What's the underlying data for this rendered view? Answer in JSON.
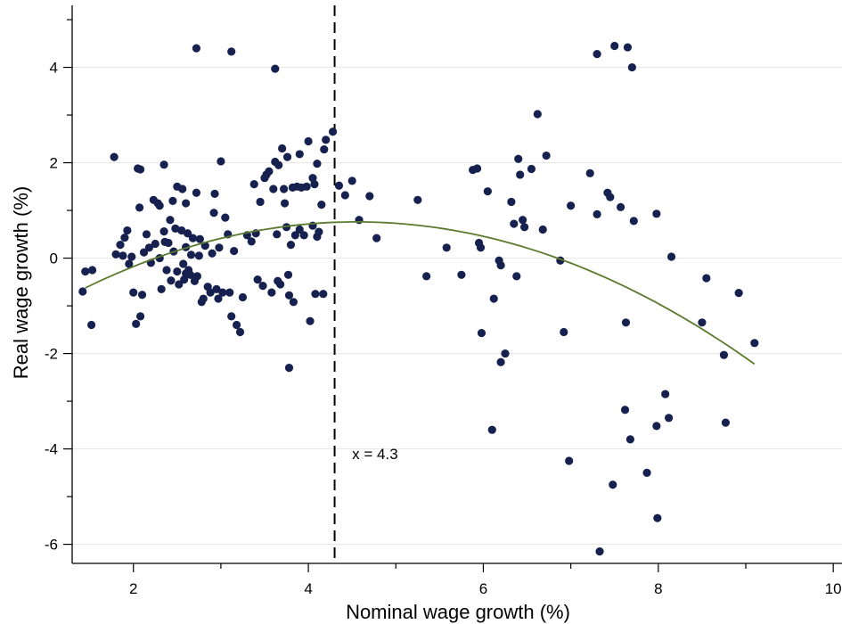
{
  "chart_data": {
    "type": "scatter",
    "xlabel": "Nominal wage growth (%)",
    "ylabel": "Real wage growth (%)",
    "xlim": [
      1.3,
      10.1
    ],
    "ylim": [
      -6.4,
      5.3
    ],
    "x_ticks": [
      2,
      4,
      6,
      8,
      10
    ],
    "y_ticks": [
      -6,
      -4,
      -2,
      0,
      2,
      4
    ],
    "grid": "horizontal",
    "marker_color": "#16214f",
    "fit_color": "#5a7a2e",
    "vline": {
      "x": 4.3,
      "style": "dashed",
      "color": "#000000"
    },
    "annotation": {
      "text": "x = 4.3",
      "x": 4.5,
      "y": -4.1
    },
    "fit_curve": {
      "type": "quadratic",
      "vertex_x": 4.55,
      "vertex_y": 0.76,
      "a": -0.144,
      "x_range": [
        1.45,
        9.1
      ]
    },
    "points": [
      [
        2.72,
        4.4
      ],
      [
        3.12,
        4.33
      ],
      [
        3.62,
        3.97
      ],
      [
        1.45,
        -0.28
      ],
      [
        1.42,
        -0.7
      ],
      [
        1.53,
        -0.25
      ],
      [
        1.52,
        -1.4
      ],
      [
        1.78,
        2.12
      ],
      [
        1.8,
        0.08
      ],
      [
        1.85,
        0.28
      ],
      [
        1.88,
        0.05
      ],
      [
        1.9,
        0.43
      ],
      [
        1.93,
        0.58
      ],
      [
        1.95,
        -0.12
      ],
      [
        1.98,
        0.03
      ],
      [
        2.0,
        -0.72
      ],
      [
        2.03,
        -1.38
      ],
      [
        2.05,
        1.88
      ],
      [
        2.08,
        1.86
      ],
      [
        2.07,
        1.06
      ],
      [
        2.08,
        -1.22
      ],
      [
        2.1,
        -0.77
      ],
      [
        2.12,
        0.12
      ],
      [
        2.15,
        0.5
      ],
      [
        2.18,
        0.22
      ],
      [
        2.2,
        -0.1
      ],
      [
        2.23,
        1.22
      ],
      [
        2.25,
        0.3
      ],
      [
        2.28,
        1.15
      ],
      [
        2.3,
        0.0
      ],
      [
        2.3,
        1.1
      ],
      [
        2.32,
        -0.65
      ],
      [
        2.35,
        0.56
      ],
      [
        2.35,
        1.96
      ],
      [
        2.36,
        0.34
      ],
      [
        2.38,
        -0.25
      ],
      [
        2.4,
        0.32
      ],
      [
        2.42,
        0.8
      ],
      [
        2.43,
        -0.47
      ],
      [
        2.45,
        1.2
      ],
      [
        2.46,
        0.14
      ],
      [
        2.48,
        0.62
      ],
      [
        2.5,
        -0.28
      ],
      [
        2.5,
        1.5
      ],
      [
        2.52,
        -0.55
      ],
      [
        2.55,
        0.58
      ],
      [
        2.56,
        1.45
      ],
      [
        2.57,
        -0.12
      ],
      [
        2.58,
        -0.45
      ],
      [
        2.6,
        -0.32
      ],
      [
        2.6,
        0.23
      ],
      [
        2.6,
        1.15
      ],
      [
        2.62,
        0.52
      ],
      [
        2.63,
        -0.25
      ],
      [
        2.65,
        -0.35
      ],
      [
        2.66,
        0.07
      ],
      [
        2.68,
        0.42
      ],
      [
        2.7,
        -0.48
      ],
      [
        2.72,
        1.37
      ],
      [
        2.73,
        -0.38
      ],
      [
        2.75,
        0.05
      ],
      [
        2.76,
        0.4
      ],
      [
        2.78,
        -0.92
      ],
      [
        2.8,
        -0.85
      ],
      [
        2.82,
        0.26
      ],
      [
        2.85,
        -0.6
      ],
      [
        2.88,
        -0.72
      ],
      [
        2.9,
        0.1
      ],
      [
        2.92,
        0.95
      ],
      [
        2.93,
        1.35
      ],
      [
        2.95,
        -0.65
      ],
      [
        2.97,
        -0.85
      ],
      [
        2.98,
        0.22
      ],
      [
        3.0,
        2.03
      ],
      [
        3.02,
        -0.72
      ],
      [
        3.05,
        0.85
      ],
      [
        3.08,
        0.5
      ],
      [
        3.1,
        -0.72
      ],
      [
        3.12,
        -1.22
      ],
      [
        3.15,
        0.15
      ],
      [
        3.18,
        -1.4
      ],
      [
        3.22,
        -1.55
      ],
      [
        3.25,
        -0.82
      ],
      [
        3.3,
        0.48
      ],
      [
        3.35,
        0.35
      ],
      [
        3.38,
        1.55
      ],
      [
        3.4,
        0.52
      ],
      [
        3.42,
        -0.45
      ],
      [
        3.45,
        1.18
      ],
      [
        3.48,
        -0.58
      ],
      [
        3.5,
        1.68
      ],
      [
        3.52,
        1.75
      ],
      [
        3.55,
        1.82
      ],
      [
        3.58,
        -0.72
      ],
      [
        3.6,
        1.45
      ],
      [
        3.62,
        2.02
      ],
      [
        3.64,
        0.5
      ],
      [
        3.65,
        -0.48
      ],
      [
        3.66,
        1.95
      ],
      [
        3.68,
        -0.55
      ],
      [
        3.7,
        2.3
      ],
      [
        3.72,
        1.45
      ],
      [
        3.73,
        1.15
      ],
      [
        3.75,
        0.65
      ],
      [
        3.76,
        2.12
      ],
      [
        3.77,
        -0.35
      ],
      [
        3.78,
        -0.78
      ],
      [
        3.8,
        0.28
      ],
      [
        3.82,
        1.48
      ],
      [
        3.83,
        -0.92
      ],
      [
        3.85,
        0.48
      ],
      [
        3.87,
        1.5
      ],
      [
        3.9,
        0.6
      ],
      [
        3.92,
        1.48
      ],
      [
        3.95,
        0.48
      ],
      [
        3.98,
        1.5
      ],
      [
        4.0,
        2.45
      ],
      [
        4.02,
        -1.32
      ],
      [
        4.05,
        1.68
      ],
      [
        4.07,
        1.55
      ],
      [
        4.08,
        -0.75
      ],
      [
        4.1,
        1.98
      ],
      [
        4.1,
        0.45
      ],
      [
        4.12,
        0.55
      ],
      [
        4.15,
        1.12
      ],
      [
        4.17,
        -0.75
      ],
      [
        4.18,
        2.28
      ],
      [
        4.2,
        2.48
      ],
      [
        4.28,
        2.65
      ],
      [
        3.78,
        -2.3
      ],
      [
        3.9,
        2.18
      ],
      [
        4.05,
        0.68
      ],
      [
        4.35,
        1.52
      ],
      [
        4.42,
        1.32
      ],
      [
        4.5,
        1.62
      ],
      [
        4.58,
        0.8
      ],
      [
        4.7,
        1.3
      ],
      [
        4.78,
        0.42
      ],
      [
        5.25,
        1.22
      ],
      [
        5.35,
        -0.38
      ],
      [
        5.58,
        0.22
      ],
      [
        5.75,
        -0.35
      ],
      [
        5.88,
        1.85
      ],
      [
        5.93,
        1.88
      ],
      [
        5.95,
        0.32
      ],
      [
        5.97,
        0.22
      ],
      [
        5.98,
        -1.57
      ],
      [
        6.05,
        1.4
      ],
      [
        6.1,
        -3.6
      ],
      [
        6.12,
        -0.85
      ],
      [
        6.18,
        -0.05
      ],
      [
        6.2,
        -0.15
      ],
      [
        6.2,
        -2.18
      ],
      [
        6.25,
        -2.0
      ],
      [
        6.32,
        1.18
      ],
      [
        6.35,
        0.72
      ],
      [
        6.38,
        -0.38
      ],
      [
        6.4,
        2.08
      ],
      [
        6.42,
        1.75
      ],
      [
        6.45,
        0.8
      ],
      [
        6.47,
        0.65
      ],
      [
        6.55,
        1.87
      ],
      [
        6.62,
        3.02
      ],
      [
        6.68,
        0.6
      ],
      [
        6.72,
        2.15
      ],
      [
        6.88,
        -0.05
      ],
      [
        6.92,
        -1.55
      ],
      [
        6.98,
        -4.25
      ],
      [
        7.0,
        1.1
      ],
      [
        7.22,
        1.78
      ],
      [
        7.3,
        0.92
      ],
      [
        7.3,
        4.28
      ],
      [
        7.33,
        -6.15
      ],
      [
        7.42,
        1.37
      ],
      [
        7.45,
        1.28
      ],
      [
        7.48,
        -4.75
      ],
      [
        7.5,
        4.45
      ],
      [
        7.57,
        1.07
      ],
      [
        7.62,
        -3.18
      ],
      [
        7.63,
        -1.35
      ],
      [
        7.65,
        4.42
      ],
      [
        7.68,
        -3.8
      ],
      [
        7.7,
        4.0
      ],
      [
        7.72,
        0.78
      ],
      [
        7.87,
        -4.5
      ],
      [
        7.98,
        0.93
      ],
      [
        7.98,
        -3.52
      ],
      [
        7.99,
        -5.45
      ],
      [
        8.08,
        -2.85
      ],
      [
        8.12,
        -3.35
      ],
      [
        8.15,
        0.03
      ],
      [
        8.5,
        -1.35
      ],
      [
        8.55,
        -0.42
      ],
      [
        8.75,
        -2.03
      ],
      [
        8.77,
        -3.45
      ],
      [
        8.92,
        -0.73
      ],
      [
        9.1,
        -1.78
      ]
    ]
  }
}
